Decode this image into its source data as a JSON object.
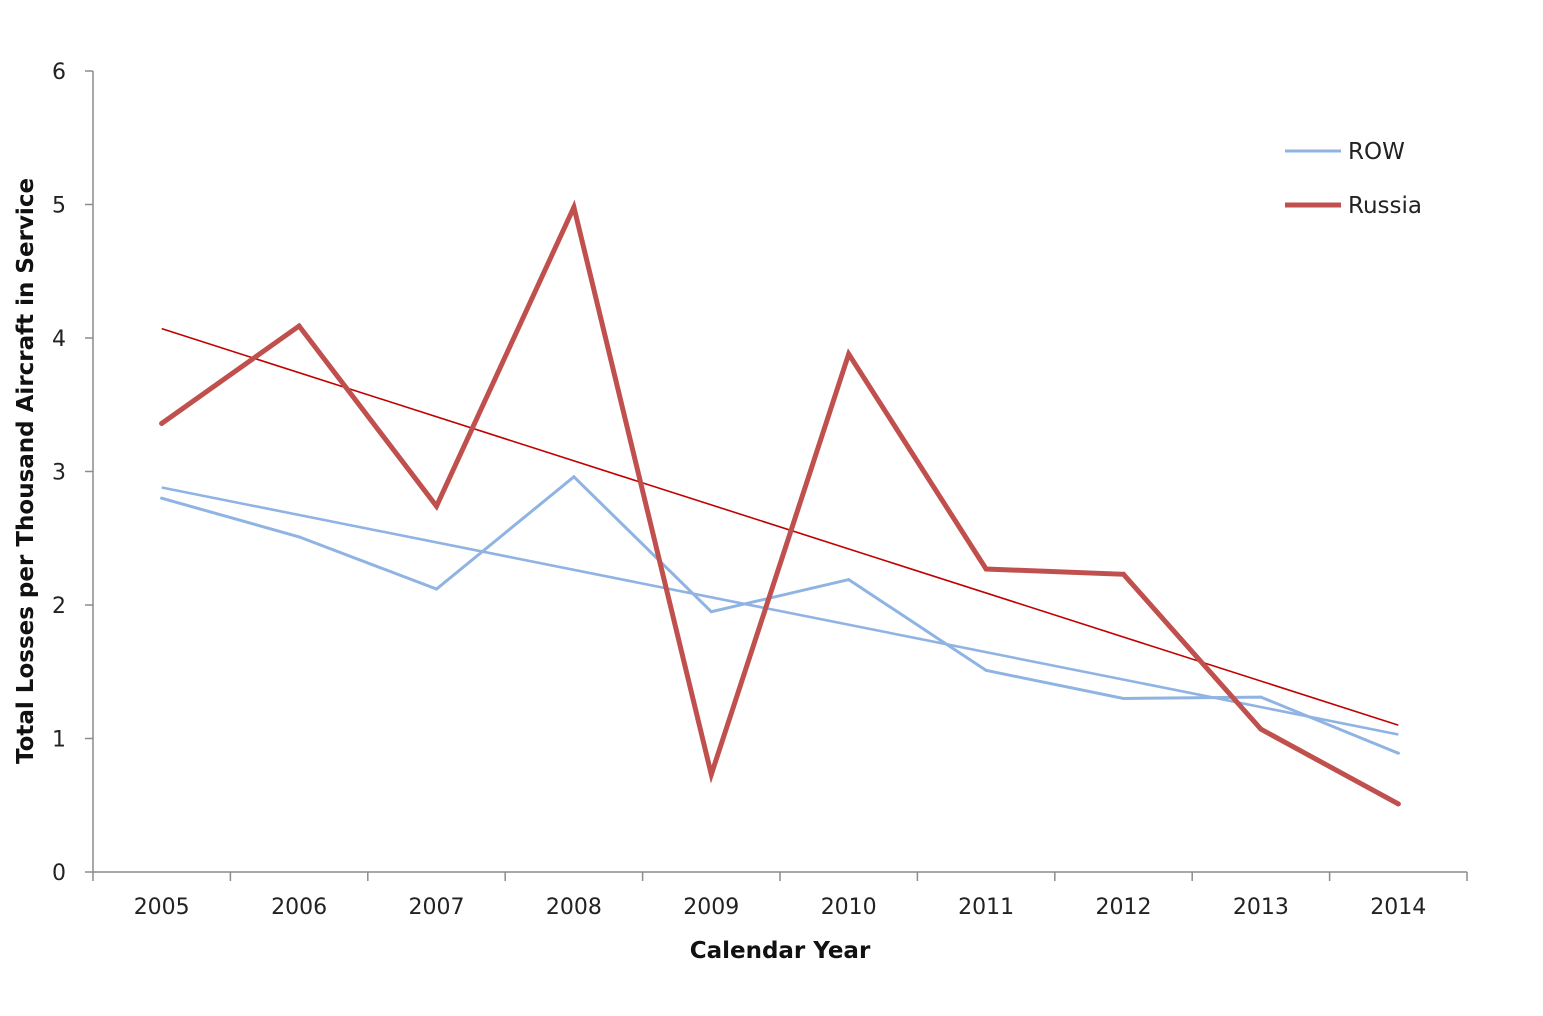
{
  "chart_data": {
    "type": "line",
    "title": "",
    "xlabel": "Calendar Year",
    "ylabel": "Total Losses per Thousand Aircraft in Service",
    "categories": [
      "2005",
      "2006",
      "2007",
      "2008",
      "2009",
      "2010",
      "2011",
      "2012",
      "2013",
      "2014"
    ],
    "y_ticks": [
      "0",
      "1",
      "2",
      "3",
      "4",
      "5",
      "6"
    ],
    "ylim": [
      0,
      6
    ],
    "grid": false,
    "legend_position": "top-right",
    "series": [
      {
        "name": "ROW",
        "color": "#8fb4e3",
        "values": [
          2.8,
          2.51,
          2.12,
          2.96,
          1.95,
          2.19,
          1.51,
          1.3,
          1.31,
          0.89
        ]
      },
      {
        "name": "Russia",
        "color": "#c0504d",
        "values": [
          3.36,
          4.09,
          2.74,
          4.98,
          0.73,
          3.88,
          2.27,
          2.23,
          1.07,
          0.51
        ]
      }
    ],
    "trendlines": [
      {
        "of": "ROW",
        "color": "#8fb4e3",
        "start": 2.88,
        "end": 1.03
      },
      {
        "of": "Russia",
        "color": "#c00000",
        "start": 4.07,
        "end": 1.1
      }
    ]
  }
}
